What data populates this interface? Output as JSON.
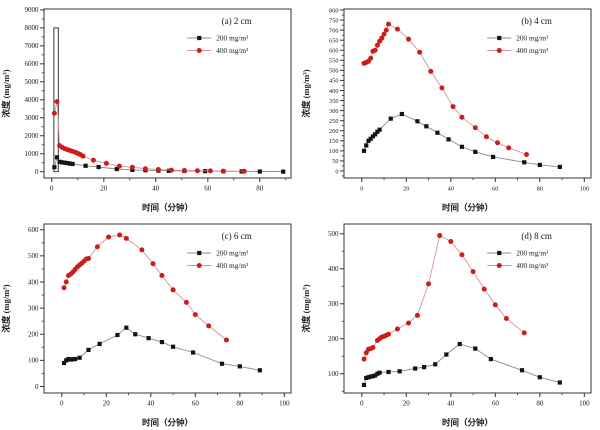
{
  "figure": {
    "background": "#ffffff",
    "xlabel": "时间（分钟）",
    "ylabel": "浓度 (mg/m³)",
    "legend_labels": [
      "200 mg/m³",
      "400 mg/m³"
    ],
    "colors": {
      "series_200_marker": "#141414",
      "series_200_line": "#8c8c8c",
      "series_400_marker": "#cc1c1c",
      "series_400_line": "#dd9292",
      "axis": "#333333",
      "text": "#1a1a1a"
    }
  },
  "chart_data": [
    {
      "id": "a",
      "type": "line",
      "title": "(a) 2 cm",
      "xlabel": "时间（分钟）",
      "ylabel": "浓度 (mg/m³)",
      "xlim": [
        -3,
        92
      ],
      "ylim": [
        -350,
        9050
      ],
      "xticks": [
        0,
        20,
        40,
        60,
        80
      ],
      "yticks": [
        0,
        1000,
        2000,
        3000,
        4000,
        5000,
        6000,
        7000,
        8000,
        9000
      ],
      "xminor": 10,
      "yminor": 500,
      "tick_font": 7,
      "spike_box": {
        "x1": 0.8,
        "x2": 2.5,
        "y0": 0,
        "y1": 8000
      },
      "series": [
        {
          "name": "200 mg/m³",
          "marker": "square",
          "marker_color": "#141414",
          "line_color": "#8c8c8c",
          "x": [
            1,
            2,
            3,
            4,
            5,
            6,
            7,
            8,
            13,
            18,
            25,
            31,
            36,
            41,
            45,
            51,
            59,
            66,
            73,
            80,
            89
          ],
          "y": [
            250,
            800,
            550,
            520,
            500,
            480,
            450,
            430,
            330,
            260,
            150,
            100,
            80,
            60,
            50,
            40,
            30,
            20,
            15,
            10,
            5
          ]
        },
        {
          "name": "400 mg/m³",
          "marker": "circle",
          "marker_color": "#cc1c1c",
          "line_color": "#dd9292",
          "x": [
            1,
            2,
            3,
            4,
            5,
            6,
            7,
            8,
            9,
            10,
            11,
            12,
            16,
            21,
            26,
            31,
            36,
            41,
            46,
            51,
            56,
            61,
            66,
            74
          ],
          "y": [
            3250,
            3900,
            1450,
            1350,
            1280,
            1230,
            1180,
            1130,
            1080,
            1020,
            950,
            870,
            640,
            460,
            310,
            250,
            165,
            125,
            90,
            65,
            55,
            45,
            35,
            25
          ]
        }
      ]
    },
    {
      "id": "b",
      "type": "line",
      "title": "(b) 4 cm",
      "xlabel": "时间（分钟）",
      "ylabel": "浓度 (mg/m³)",
      "xlim": [
        -8,
        103
      ],
      "ylim": [
        -35,
        805
      ],
      "xticks": [
        0,
        20,
        40,
        60,
        80,
        100
      ],
      "yticks": [
        0,
        50,
        100,
        150,
        200,
        250,
        300,
        350,
        400,
        450,
        500,
        550,
        600,
        650,
        700,
        750,
        800
      ],
      "xminor": 10,
      "yminor": 25,
      "tick_font": 6.3,
      "series": [
        {
          "name": "200 mg/m³",
          "marker": "square",
          "marker_color": "#141414",
          "line_color": "#8c8c8c",
          "x": [
            1,
            2,
            3,
            4,
            5,
            6,
            7,
            8,
            13,
            18,
            25,
            29,
            34,
            39,
            45,
            51,
            59,
            73,
            80,
            89
          ],
          "y": [
            100,
            127,
            150,
            160,
            172,
            182,
            195,
            205,
            260,
            283,
            247,
            222,
            190,
            157,
            120,
            95,
            70,
            43,
            30,
            20
          ]
        },
        {
          "name": "400 mg/m³",
          "marker": "circle",
          "marker_color": "#cc1c1c",
          "line_color": "#dd9292",
          "x": [
            1,
            2,
            3,
            4,
            5,
            6,
            7,
            8,
            9,
            10,
            11,
            12,
            16,
            21,
            26,
            31,
            36,
            41,
            45,
            51,
            56,
            61,
            66,
            74
          ],
          "y": [
            535,
            540,
            545,
            560,
            595,
            600,
            625,
            645,
            660,
            680,
            700,
            730,
            705,
            655,
            590,
            495,
            413,
            320,
            267,
            215,
            170,
            140,
            115,
            82
          ]
        }
      ]
    },
    {
      "id": "c",
      "type": "line",
      "title": "(c) 6 cm",
      "xlabel": "时间（分钟）",
      "ylabel": "浓度 (mg/m³)",
      "xlim": [
        -8,
        103
      ],
      "ylim": [
        -25,
        622
      ],
      "xticks": [
        0,
        20,
        40,
        60,
        80,
        100
      ],
      "yticks": [
        0,
        100,
        200,
        300,
        400,
        500,
        600
      ],
      "xminor": 10,
      "yminor": 50,
      "tick_font": 7,
      "series": [
        {
          "name": "200 mg/m³",
          "marker": "square",
          "marker_color": "#141414",
          "line_color": "#8c8c8c",
          "x": [
            1,
            2,
            3,
            4,
            5,
            6,
            8,
            12,
            17,
            25,
            29,
            33,
            39,
            45,
            50,
            59,
            72,
            80,
            89
          ],
          "y": [
            90,
            100,
            105,
            103,
            104,
            105,
            110,
            140,
            163,
            197,
            225,
            200,
            185,
            170,
            152,
            130,
            87,
            77,
            62
          ]
        },
        {
          "name": "400 mg/m³",
          "marker": "circle",
          "marker_color": "#cc1c1c",
          "line_color": "#dd9292",
          "x": [
            1,
            2,
            3,
            4,
            5,
            6,
            7,
            8,
            9,
            10,
            11,
            12,
            16,
            21,
            26,
            29,
            36,
            41,
            45,
            50,
            56,
            60,
            66,
            74
          ],
          "y": [
            378,
            400,
            425,
            430,
            438,
            448,
            458,
            465,
            472,
            480,
            488,
            490,
            535,
            572,
            580,
            567,
            523,
            470,
            425,
            370,
            322,
            275,
            232,
            178
          ]
        }
      ]
    },
    {
      "id": "d",
      "type": "line",
      "title": "(d) 8 cm",
      "xlabel": "时间（分钟）",
      "ylabel": "浓度 (mg/m³)",
      "xlim": [
        -8,
        103
      ],
      "ylim": [
        45,
        528
      ],
      "xticks": [
        0,
        20,
        40,
        60,
        80,
        100
      ],
      "yticks": [
        100,
        200,
        300,
        400,
        500
      ],
      "xminor": 10,
      "yminor": 50,
      "tick_font": 7,
      "series": [
        {
          "name": "200 mg/m³",
          "marker": "square",
          "marker_color": "#141414",
          "line_color": "#8c8c8c",
          "x": [
            1,
            2,
            3,
            4,
            5,
            6,
            7,
            8,
            12,
            17,
            24,
            28,
            33,
            38,
            44,
            51,
            58,
            72,
            80,
            89
          ],
          "y": [
            68,
            88,
            90,
            92,
            93,
            95,
            100,
            103,
            105,
            107,
            115,
            119,
            127,
            155,
            185,
            172,
            142,
            110,
            90,
            75
          ]
        },
        {
          "name": "400 mg/m³",
          "marker": "circle",
          "marker_color": "#cc1c1c",
          "line_color": "#dd9292",
          "x": [
            1,
            2,
            3,
            4,
            5,
            7,
            8,
            9,
            10,
            11,
            12,
            16,
            21,
            25,
            30,
            35,
            40,
            45,
            50,
            55,
            60,
            65,
            73
          ],
          "y": [
            142,
            160,
            170,
            172,
            175,
            195,
            200,
            205,
            207,
            210,
            213,
            228,
            245,
            267,
            357,
            495,
            478,
            440,
            392,
            342,
            297,
            258,
            217
          ]
        }
      ]
    }
  ]
}
